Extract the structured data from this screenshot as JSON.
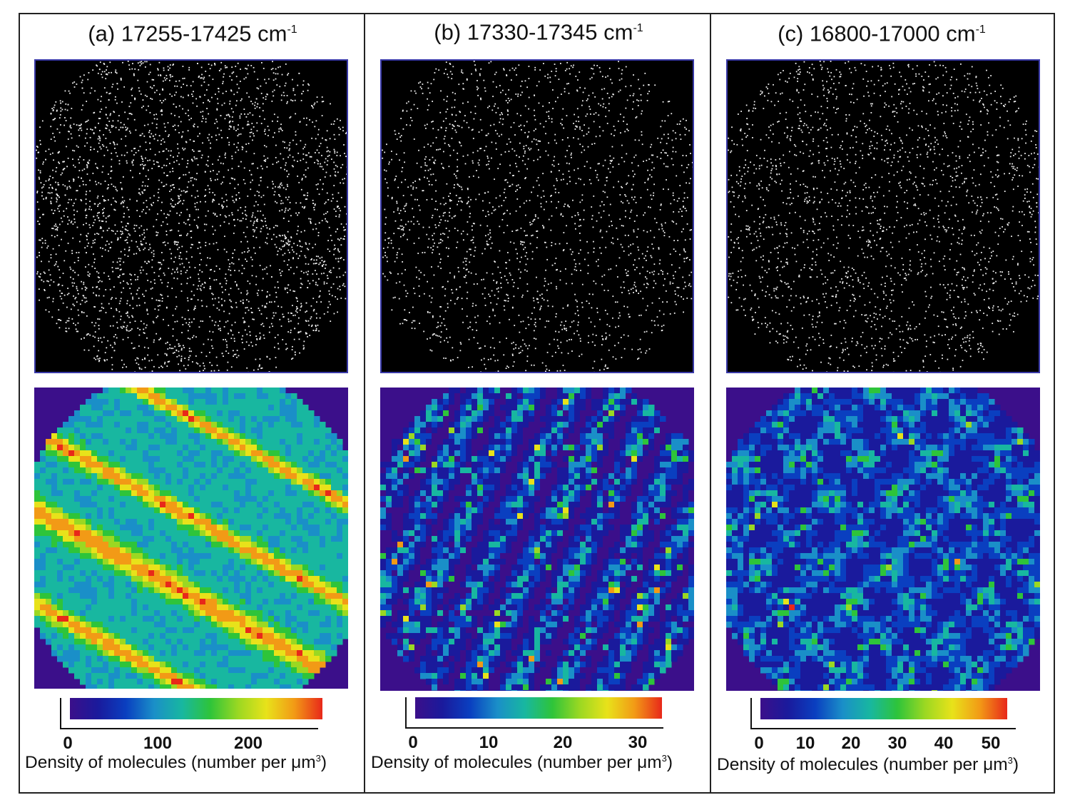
{
  "panels": [
    {
      "title": "(a) 17255-17425 cm",
      "title_sup": "-1",
      "ticks": [
        "0",
        "100",
        "200"
      ],
      "caption": "Density of molecules (number per μm",
      "caption_sup": "3",
      "caption_end": ")",
      "colorbar_max": 280,
      "pattern": "stripes"
    },
    {
      "title": "(b) 17330-17345 cm",
      "title_sup": "-1",
      "ticks": [
        "0",
        "10",
        "20",
        "30"
      ],
      "caption": "Density of molecules (number per μm",
      "caption_sup": "3",
      "caption_end": ")",
      "colorbar_max": 33,
      "pattern": "sparse"
    },
    {
      "title": "(c) 16800-17000 cm",
      "title_sup": "-1",
      "ticks": [
        "0",
        "10",
        "20",
        "30",
        "40",
        "50"
      ],
      "caption": "Density of molecules (number per μm",
      "caption_sup": "3",
      "caption_end": ")",
      "colorbar_max": 55,
      "pattern": "cross"
    }
  ],
  "colormap": [
    "#3b0f8a",
    "#1a1a9c",
    "#0a3fc0",
    "#1a8fc8",
    "#18b7a0",
    "#2ec43a",
    "#9bd822",
    "#e8e21a",
    "#f29a16",
    "#e8281a"
  ]
}
